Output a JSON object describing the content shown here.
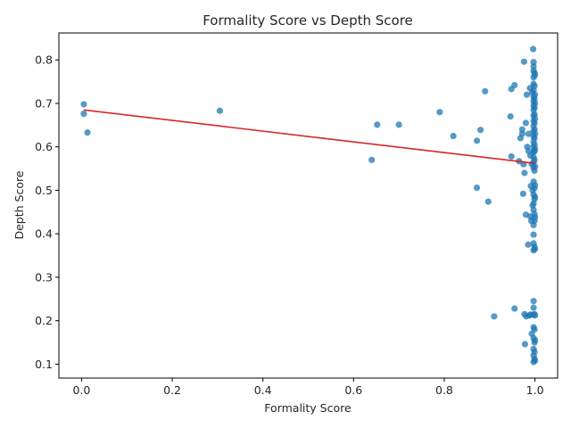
{
  "chart_data": {
    "type": "scatter",
    "title": "Formality Score vs Depth Score",
    "xlabel": "Formality Score",
    "ylabel": "Depth Score",
    "xlim": [
      -0.05,
      1.05
    ],
    "ylim": [
      0.068,
      0.862
    ],
    "xticks": [
      "0.0",
      "0.2",
      "0.4",
      "0.6",
      "0.8",
      "1.0"
    ],
    "yticks": [
      "0.1",
      "0.2",
      "0.3",
      "0.4",
      "0.5",
      "0.6",
      "0.7",
      "0.8"
    ],
    "grid": false,
    "point_color": "#1f77b4",
    "line_color": "#d62728",
    "series": [
      {
        "type": "scatter",
        "points": [
          [
            0.005,
            0.698
          ],
          [
            0.005,
            0.676
          ],
          [
            0.013,
            0.633
          ],
          [
            0.305,
            0.683
          ],
          [
            0.64,
            0.57
          ],
          [
            0.652,
            0.651
          ],
          [
            0.7,
            0.651
          ],
          [
            0.79,
            0.68
          ],
          [
            0.82,
            0.625
          ],
          [
            0.872,
            0.614
          ],
          [
            0.88,
            0.639
          ],
          [
            0.89,
            0.728
          ],
          [
            0.872,
            0.506
          ],
          [
            0.897,
            0.474
          ],
          [
            0.91,
            0.21
          ],
          [
            0.946,
            0.67
          ],
          [
            0.948,
            0.733
          ],
          [
            0.955,
            0.742
          ],
          [
            0.948,
            0.578
          ],
          [
            0.955,
            0.228
          ],
          [
            0.965,
            0.567
          ],
          [
            0.968,
            0.62
          ],
          [
            0.972,
            0.63
          ],
          [
            0.972,
            0.64
          ],
          [
            0.975,
            0.56
          ],
          [
            0.976,
            0.796
          ],
          [
            0.977,
            0.54
          ],
          [
            0.974,
            0.492
          ],
          [
            0.977,
            0.215
          ],
          [
            0.978,
            0.146
          ],
          [
            0.98,
            0.655
          ],
          [
            0.98,
            0.444
          ],
          [
            0.981,
            0.21
          ],
          [
            0.982,
            0.72
          ],
          [
            0.983,
            0.6
          ],
          [
            0.985,
            0.375
          ],
          [
            0.986,
            0.59
          ],
          [
            0.986,
            0.63
          ],
          [
            0.988,
            0.212
          ],
          [
            0.989,
            0.735
          ],
          [
            0.99,
            0.58
          ],
          [
            0.99,
            0.44
          ],
          [
            0.99,
            0.214
          ],
          [
            0.991,
            0.51
          ],
          [
            0.992,
            0.43
          ],
          [
            0.993,
            0.56
          ],
          [
            0.993,
            0.17
          ],
          [
            0.994,
            0.725
          ],
          [
            0.995,
            0.465
          ],
          [
            0.995,
            0.5
          ],
          [
            0.996,
            0.214
          ],
          [
            0.996,
            0.825
          ],
          [
            0.997,
            0.795
          ],
          [
            0.997,
            0.785
          ],
          [
            0.997,
            0.775
          ],
          [
            0.997,
            0.76
          ],
          [
            0.997,
            0.745
          ],
          [
            0.997,
            0.73
          ],
          [
            0.997,
            0.715
          ],
          [
            0.997,
            0.705
          ],
          [
            0.997,
            0.695
          ],
          [
            0.997,
            0.685
          ],
          [
            0.997,
            0.672
          ],
          [
            0.997,
            0.66
          ],
          [
            0.997,
            0.648
          ],
          [
            0.997,
            0.636
          ],
          [
            0.997,
            0.624
          ],
          [
            0.997,
            0.612
          ],
          [
            0.997,
            0.6
          ],
          [
            0.997,
            0.588
          ],
          [
            0.997,
            0.576
          ],
          [
            0.997,
            0.564
          ],
          [
            0.997,
            0.552
          ],
          [
            0.997,
            0.52
          ],
          [
            0.997,
            0.49
          ],
          [
            0.997,
            0.47
          ],
          [
            0.997,
            0.455
          ],
          [
            0.997,
            0.42
          ],
          [
            0.997,
            0.398
          ],
          [
            0.997,
            0.378
          ],
          [
            0.997,
            0.362
          ],
          [
            0.997,
            0.245
          ],
          [
            0.997,
            0.23
          ],
          [
            0.997,
            0.185
          ],
          [
            0.997,
            0.16
          ],
          [
            0.997,
            0.135
          ],
          [
            0.997,
            0.12
          ],
          [
            0.997,
            0.105
          ],
          [
            0.999,
            0.77
          ],
          [
            0.999,
            0.74
          ],
          [
            0.999,
            0.71
          ],
          [
            0.999,
            0.69
          ],
          [
            0.999,
            0.675
          ],
          [
            0.999,
            0.655
          ],
          [
            0.999,
            0.64
          ],
          [
            0.999,
            0.62
          ],
          [
            0.999,
            0.605
          ],
          [
            0.999,
            0.59
          ],
          [
            0.999,
            0.57
          ],
          [
            0.999,
            0.545
          ],
          [
            0.999,
            0.505
          ],
          [
            0.999,
            0.48
          ],
          [
            0.999,
            0.445
          ],
          [
            0.999,
            0.43
          ],
          [
            0.999,
            0.37
          ],
          [
            0.999,
            0.215
          ],
          [
            0.999,
            0.18
          ],
          [
            0.999,
            0.15
          ],
          [
            0.999,
            0.128
          ],
          [
            0.999,
            0.112
          ],
          [
            1.0,
            0.765
          ],
          [
            1.0,
            0.72
          ],
          [
            1.0,
            0.7
          ],
          [
            1.0,
            0.665
          ],
          [
            1.0,
            0.63
          ],
          [
            1.0,
            0.595
          ],
          [
            1.0,
            0.555
          ],
          [
            1.0,
            0.512
          ],
          [
            1.0,
            0.485
          ],
          [
            1.0,
            0.438
          ],
          [
            1.0,
            0.365
          ],
          [
            1.0,
            0.212
          ],
          [
            1.0,
            0.155
          ],
          [
            1.0,
            0.108
          ]
        ]
      },
      {
        "type": "line",
        "points": [
          [
            0.005,
            0.685
          ],
          [
            1.0,
            0.562
          ]
        ]
      }
    ]
  }
}
